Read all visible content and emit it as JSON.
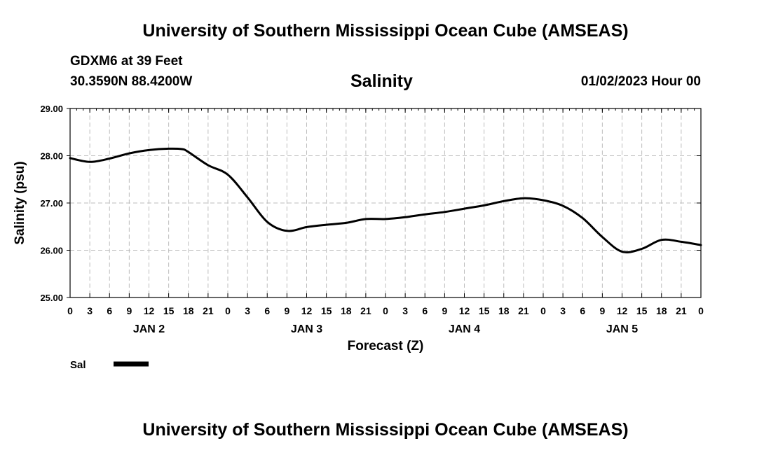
{
  "header": {
    "main_title": "University of Southern Mississippi Ocean Cube (AMSEAS)",
    "station": "GDXM6 at 39 Feet",
    "coordinates": "30.3590N  88.4200W",
    "datetime": "01/02/2023 Hour 00"
  },
  "footer": {
    "title": "University of Southern Mississippi Ocean Cube (AMSEAS)"
  },
  "chart_data": {
    "type": "line",
    "title": "Salinity",
    "xlabel": "Forecast (Z)",
    "ylabel": "Salinity (psu)",
    "ylim": [
      25.0,
      29.0
    ],
    "yticks": [
      "25.00",
      "26.00",
      "27.00",
      "28.00",
      "29.00"
    ],
    "x_hours_range": [
      0,
      96
    ],
    "x_tick_labels": [
      "0",
      "3",
      "6",
      "9",
      "12",
      "15",
      "18",
      "21",
      "0",
      "3",
      "6",
      "9",
      "12",
      "15",
      "18",
      "21",
      "0",
      "3",
      "6",
      "9",
      "12",
      "15",
      "18",
      "21",
      "0",
      "3",
      "6",
      "9",
      "12",
      "15",
      "18",
      "21",
      "0"
    ],
    "day_labels": [
      {
        "label": "JAN 2",
        "hour": 12
      },
      {
        "label": "JAN 3",
        "hour": 36
      },
      {
        "label": "JAN 4",
        "hour": 60
      },
      {
        "label": "JAN 5",
        "hour": 84
      }
    ],
    "grid": true,
    "legend": [
      {
        "name": "Sal",
        "color": "#000000"
      }
    ],
    "series": [
      {
        "name": "Sal",
        "color": "#000000",
        "x": [
          0,
          3,
          6,
          9,
          12,
          15,
          17,
          18,
          21,
          24,
          27,
          30,
          33,
          36,
          39,
          42,
          45,
          48,
          51,
          54,
          57,
          60,
          63,
          66,
          69,
          72,
          75,
          78,
          81,
          84,
          87,
          90,
          93,
          96
        ],
        "values": [
          27.95,
          27.87,
          27.94,
          28.05,
          28.12,
          28.15,
          28.14,
          28.08,
          27.8,
          27.6,
          27.12,
          26.6,
          26.41,
          26.49,
          26.54,
          26.58,
          26.66,
          26.66,
          26.7,
          26.76,
          26.81,
          26.88,
          26.95,
          27.04,
          27.1,
          27.06,
          26.94,
          26.68,
          26.28,
          25.97,
          26.03,
          26.22,
          26.18,
          26.11
        ]
      }
    ]
  }
}
